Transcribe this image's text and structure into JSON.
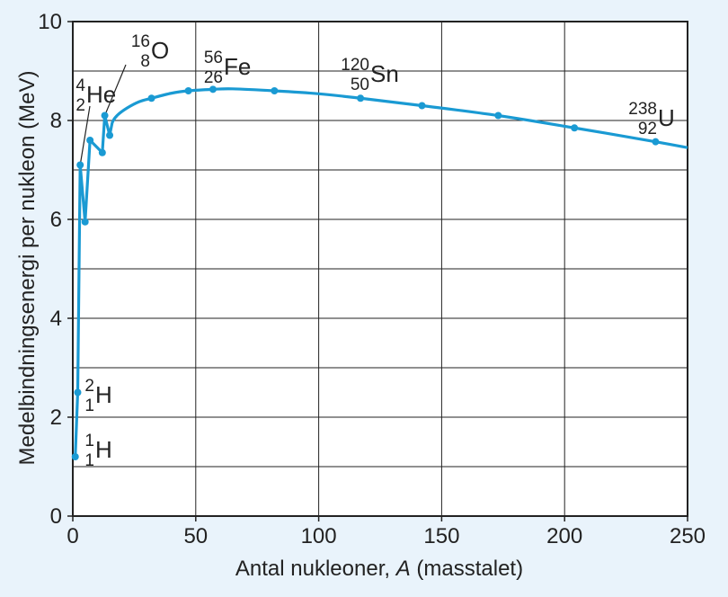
{
  "chart_data": {
    "type": "line",
    "xlabel_prefix": "Antal nukleoner, ",
    "xlabel_var": "A",
    "xlabel_suffix": " (masstalet)",
    "ylabel": "Medelbindningsenergi per nukleon (MeV)",
    "xlim": [
      0,
      250
    ],
    "ylim": [
      0,
      10
    ],
    "x_ticks": [
      0,
      50,
      100,
      150,
      200,
      250
    ],
    "y_ticks": [
      0,
      2,
      4,
      6,
      8,
      10
    ],
    "grid": true,
    "series": [
      {
        "points": [
          {
            "x": 1,
            "y": 1.2
          },
          {
            "x": 2,
            "y": 2.5
          },
          {
            "x": 3,
            "y": 7.1
          },
          {
            "x": 5,
            "y": 5.95
          },
          {
            "x": 7,
            "y": 7.6
          },
          {
            "x": 12,
            "y": 7.35
          },
          {
            "x": 13,
            "y": 8.1
          },
          {
            "x": 15,
            "y": 7.7
          },
          {
            "x": 32,
            "y": 8.45
          },
          {
            "x": 47,
            "y": 8.6
          },
          {
            "x": 57,
            "y": 8.63
          },
          {
            "x": 82,
            "y": 8.6
          },
          {
            "x": 117,
            "y": 8.45
          },
          {
            "x": 142,
            "y": 8.3
          },
          {
            "x": 173,
            "y": 8.1
          },
          {
            "x": 204,
            "y": 7.85
          },
          {
            "x": 237,
            "y": 7.57
          }
        ],
        "curve": [
          [
            1,
            1.2
          ],
          [
            2,
            2.5
          ],
          [
            3,
            7.1
          ],
          [
            5,
            5.95
          ],
          [
            7,
            7.6
          ],
          [
            12,
            7.35
          ],
          [
            13,
            8.1
          ],
          [
            15,
            7.7
          ],
          [
            16,
            7.95
          ],
          [
            18,
            8.1
          ],
          [
            22,
            8.25
          ],
          [
            27,
            8.38
          ],
          [
            32,
            8.45
          ],
          [
            40,
            8.55
          ],
          [
            47,
            8.6
          ],
          [
            57,
            8.63
          ],
          [
            65,
            8.64
          ],
          [
            82,
            8.6
          ],
          [
            100,
            8.54
          ],
          [
            117,
            8.45
          ],
          [
            142,
            8.3
          ],
          [
            173,
            8.1
          ],
          [
            204,
            7.85
          ],
          [
            237,
            7.57
          ],
          [
            250,
            7.45
          ]
        ]
      }
    ],
    "annotations": [
      {
        "element": "H",
        "mass": "1",
        "atomic": "1"
      },
      {
        "element": "H",
        "mass": "2",
        "atomic": "1"
      },
      {
        "element": "He",
        "mass": "4",
        "atomic": "2"
      },
      {
        "element": "O",
        "mass": "16",
        "atomic": "8"
      },
      {
        "element": "Fe",
        "mass": "56",
        "atomic": "26"
      },
      {
        "element": "Sn",
        "mass": "120",
        "atomic": "50"
      },
      {
        "element": "U",
        "mass": "238",
        "atomic": "92"
      }
    ]
  },
  "colors": {
    "curve": "#1a9ad3",
    "axis": "#222222",
    "grid": "#222222",
    "plot_bg": "#ffffff",
    "page_bg": "#e9f3fb"
  }
}
